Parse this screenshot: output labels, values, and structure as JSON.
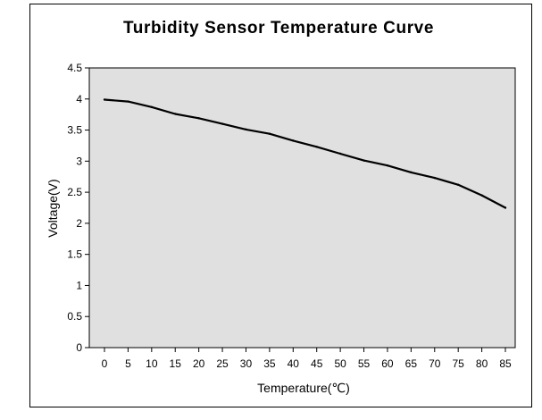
{
  "chart_data": {
    "type": "line",
    "title": "Turbidity Sensor Temperature Curve",
    "xlabel": "Temperature(℃)",
    "ylabel": "Voltage(V)",
    "xlim": [
      0,
      85
    ],
    "ylim": [
      0,
      4.5
    ],
    "x_ticks": [
      "0",
      "5",
      "10",
      "15",
      "20",
      "25",
      "30",
      "35",
      "40",
      "45",
      "50",
      "55",
      "60",
      "65",
      "70",
      "75",
      "80",
      "85"
    ],
    "y_ticks": [
      "0",
      "0.5",
      "1",
      "1.5",
      "2",
      "2.5",
      "3",
      "3.5",
      "4",
      "4.5"
    ],
    "grid": false,
    "legend": "none",
    "series": [
      {
        "name": "Voltage",
        "x": [
          0,
          5,
          10,
          15,
          20,
          25,
          30,
          35,
          40,
          45,
          50,
          55,
          60,
          65,
          70,
          75,
          80,
          85
        ],
        "values": [
          3.99,
          3.96,
          3.87,
          3.76,
          3.69,
          3.6,
          3.51,
          3.44,
          3.33,
          3.23,
          3.12,
          3.01,
          2.93,
          2.82,
          2.73,
          2.62,
          2.45,
          2.25
        ]
      }
    ],
    "colors": {
      "plot_background": "#e0e0e0",
      "line": "#000000",
      "axis": "#000000"
    }
  }
}
